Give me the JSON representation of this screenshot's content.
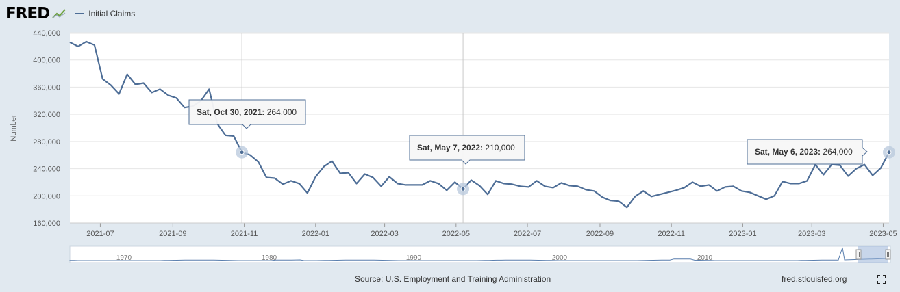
{
  "header": {
    "logo": "FRED",
    "legend_label": "Initial Claims",
    "series_color": "#4d6d96"
  },
  "footer": {
    "source": "Source: U.S. Employment and Training Administration",
    "url": "fred.stlouisfed.org",
    "fullscreen_icon": "fullscreen-icon"
  },
  "chart_data": {
    "type": "line",
    "ylabel": "Number",
    "ylim": [
      160000,
      440000
    ],
    "yticks": [
      160000,
      200000,
      240000,
      280000,
      320000,
      360000,
      400000,
      440000
    ],
    "ytick_labels": [
      "160,000",
      "200,000",
      "240,000",
      "280,000",
      "320,000",
      "360,000",
      "400,000",
      "440,000"
    ],
    "xticks": [
      {
        "date": "2021-07-01",
        "label": "2021-07"
      },
      {
        "date": "2021-09-01",
        "label": "2021-09"
      },
      {
        "date": "2021-11-01",
        "label": "2021-11"
      },
      {
        "date": "2022-01-01",
        "label": "2022-01"
      },
      {
        "date": "2022-03-01",
        "label": "2022-03"
      },
      {
        "date": "2022-05-01",
        "label": "2022-05"
      },
      {
        "date": "2022-07-01",
        "label": "2022-07"
      },
      {
        "date": "2022-09-01",
        "label": "2022-09"
      },
      {
        "date": "2022-11-01",
        "label": "2022-11"
      },
      {
        "date": "2023-01-01",
        "label": "2023-01"
      },
      {
        "date": "2023-03-01",
        "label": "2023-03"
      },
      {
        "date": "2023-05-01",
        "label": "2023-05"
      }
    ],
    "grid": true,
    "legend": "top-left",
    "series": [
      {
        "name": "Initial Claims",
        "color": "#4d6d96",
        "x": [
          "2021-06-05",
          "2021-06-12",
          "2021-06-19",
          "2021-06-26",
          "2021-07-03",
          "2021-07-10",
          "2021-07-17",
          "2021-07-24",
          "2021-07-31",
          "2021-08-07",
          "2021-08-14",
          "2021-08-21",
          "2021-08-28",
          "2021-09-04",
          "2021-09-11",
          "2021-09-18",
          "2021-09-25",
          "2021-10-02",
          "2021-10-09",
          "2021-10-16",
          "2021-10-23",
          "2021-10-30",
          "2021-11-06",
          "2021-11-13",
          "2021-11-20",
          "2021-11-27",
          "2021-12-04",
          "2021-12-11",
          "2021-12-18",
          "2021-12-25",
          "2022-01-01",
          "2022-01-08",
          "2022-01-15",
          "2022-01-22",
          "2022-01-29",
          "2022-02-05",
          "2022-02-12",
          "2022-02-19",
          "2022-02-26",
          "2022-03-05",
          "2022-03-12",
          "2022-03-19",
          "2022-03-26",
          "2022-04-02",
          "2022-04-09",
          "2022-04-16",
          "2022-04-23",
          "2022-04-30",
          "2022-05-07",
          "2022-05-14",
          "2022-05-21",
          "2022-05-28",
          "2022-06-04",
          "2022-06-11",
          "2022-06-18",
          "2022-06-25",
          "2022-07-02",
          "2022-07-09",
          "2022-07-16",
          "2022-07-23",
          "2022-07-30",
          "2022-08-06",
          "2022-08-13",
          "2022-08-20",
          "2022-08-27",
          "2022-09-03",
          "2022-09-10",
          "2022-09-17",
          "2022-09-24",
          "2022-10-01",
          "2022-10-08",
          "2022-10-15",
          "2022-10-22",
          "2022-10-29",
          "2022-11-05",
          "2022-11-12",
          "2022-11-19",
          "2022-11-26",
          "2022-12-03",
          "2022-12-10",
          "2022-12-17",
          "2022-12-24",
          "2022-12-31",
          "2023-01-07",
          "2023-01-14",
          "2023-01-21",
          "2023-01-28",
          "2023-02-04",
          "2023-02-11",
          "2023-02-18",
          "2023-02-25",
          "2023-03-04",
          "2023-03-11",
          "2023-03-18",
          "2023-03-25",
          "2023-04-01",
          "2023-04-08",
          "2023-04-15",
          "2023-04-22",
          "2023-04-29",
          "2023-05-06"
        ],
        "values": [
          426000,
          420000,
          427000,
          422000,
          372000,
          363000,
          350000,
          379000,
          364000,
          366000,
          352000,
          357000,
          348000,
          344000,
          330000,
          332000,
          340000,
          357000,
          306000,
          289000,
          288000,
          264000,
          260000,
          250000,
          227000,
          226000,
          217000,
          222000,
          218000,
          204000,
          228000,
          243000,
          251000,
          233000,
          234000,
          218000,
          232000,
          227000,
          214000,
          228000,
          218000,
          216000,
          216000,
          216000,
          222000,
          218000,
          208000,
          220000,
          210000,
          223000,
          215000,
          202000,
          222000,
          218000,
          217000,
          214000,
          213000,
          222000,
          214000,
          212000,
          219000,
          215000,
          214000,
          209000,
          207000,
          198000,
          193000,
          192000,
          183000,
          199000,
          207000,
          199000,
          202000,
          205000,
          208000,
          212000,
          220000,
          214000,
          216000,
          207000,
          213000,
          214000,
          207000,
          205000,
          200000,
          195000,
          200000,
          221000,
          218000,
          218000,
          222000,
          246000,
          231000,
          246000,
          245000,
          229000,
          240000,
          246000,
          230000,
          241000,
          264000
        ]
      }
    ],
    "tooltips": [
      {
        "date": "Sat, Oct 30, 2021",
        "value": "264,000"
      },
      {
        "date": "Sat, May 7, 2022",
        "value": "210,000"
      },
      {
        "date": "Sat, May 6, 2023",
        "value": "264,000"
      }
    ],
    "navigator": {
      "labels": [
        "1970",
        "1980",
        "1990",
        "2000",
        "2010"
      ]
    }
  }
}
